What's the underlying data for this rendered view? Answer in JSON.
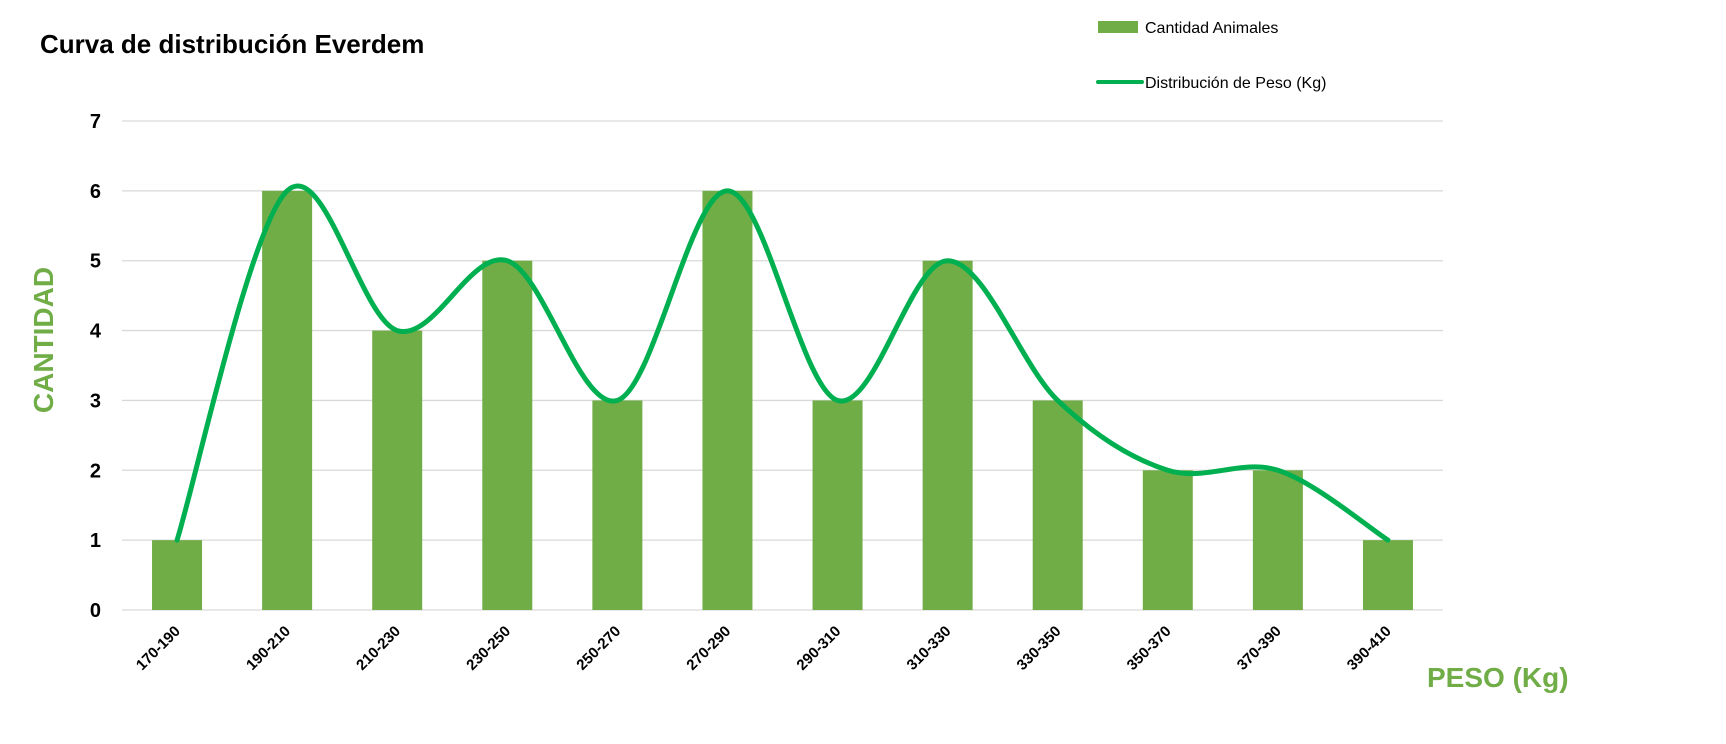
{
  "chart_data": {
    "type": "bar",
    "title": "Curva de distribución Everdem",
    "xlabel": "PESO (Kg)",
    "ylabel": "CANTIDAD",
    "categories": [
      "170-190",
      "190-210",
      "210-230",
      "230-250",
      "250-270",
      "270-290",
      "290-310",
      "310-330",
      "330-350",
      "350-370",
      "370-390",
      "390-410"
    ],
    "series": [
      {
        "name": "Cantidad Animales",
        "kind": "bar",
        "values": [
          1,
          6,
          4,
          5,
          3,
          6,
          3,
          5,
          3,
          2,
          2,
          1
        ]
      },
      {
        "name": "Distribución de Peso (Kg)",
        "kind": "line",
        "smooth": true,
        "values": [
          1,
          6,
          4,
          5,
          3,
          6,
          3,
          5,
          3,
          2,
          2,
          1
        ]
      }
    ],
    "ylim": [
      0,
      7
    ],
    "yticks": [
      0,
      1,
      2,
      3,
      4,
      5,
      6,
      7
    ],
    "grid": true,
    "legend_position": "top-right",
    "colors": {
      "bar": "#70ad47",
      "line": "#00b050",
      "axis_label": "#70ad47",
      "grid": "#d9d9d9"
    }
  }
}
